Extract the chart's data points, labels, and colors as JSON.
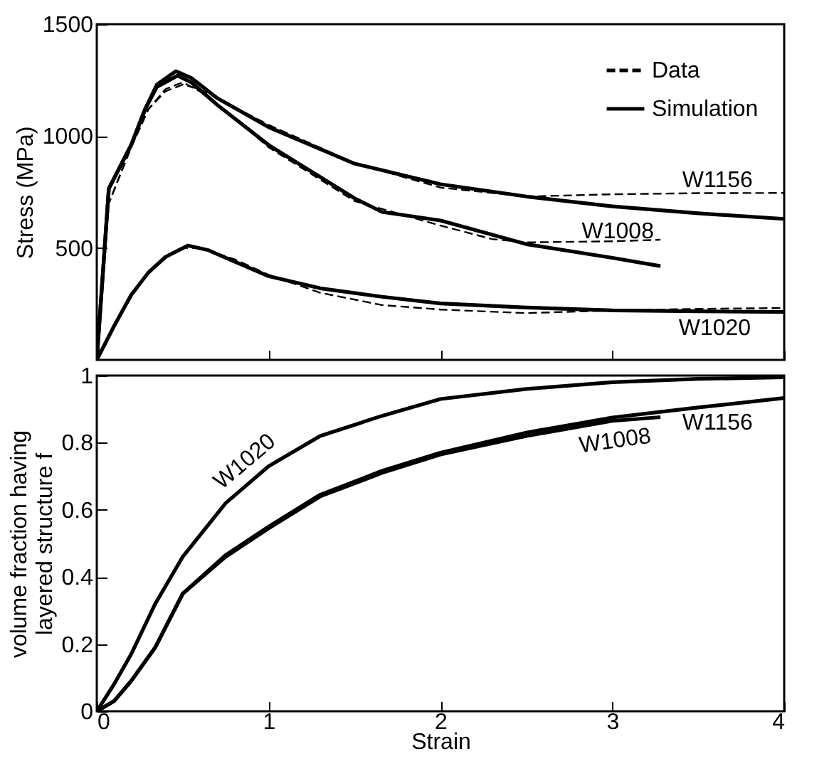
{
  "chart_data": [
    {
      "type": "line",
      "ylabel": "Stress (MPa)",
      "xlim": [
        0,
        4
      ],
      "xticks": [
        0,
        1,
        2,
        3,
        4
      ],
      "ylim": [
        0,
        1500
      ],
      "yticks": [
        500,
        1000,
        1500
      ],
      "tick_labels": "y",
      "legend": "top right",
      "grid": false,
      "series": [
        {
          "name": "Data",
          "color": "#000000",
          "line_style": "dashed",
          "x": [
            0,
            0.07,
            0.2,
            0.3,
            0.4,
            0.5,
            0.6,
            0.8,
            1,
            1.5,
            2,
            2.5,
            3,
            3.5,
            4
          ],
          "values": [
            0,
            700,
            950,
            1120,
            1200,
            1230,
            1210,
            1130,
            1050,
            880,
            770,
            730,
            740,
            745,
            746
          ]
        },
        {
          "color": "#000000",
          "line_style": "dashed",
          "x": [
            0,
            0.07,
            0.2,
            0.3,
            0.4,
            0.5,
            0.6,
            0.8,
            1,
            1.5,
            2,
            2.3,
            2.5,
            3,
            3.28
          ],
          "values": [
            0,
            700,
            950,
            1120,
            1210,
            1240,
            1200,
            1080,
            950,
            710,
            600,
            540,
            525,
            530,
            537
          ]
        },
        {
          "color": "#000000",
          "line_style": "dashed",
          "x": [
            0,
            0.1,
            0.2,
            0.3,
            0.4,
            0.5,
            0.6,
            0.8,
            1,
            1.3,
            1.66,
            2,
            2.5,
            3,
            3.5,
            4
          ],
          "values": [
            0,
            150,
            280,
            390,
            460,
            500,
            500,
            450,
            380,
            300,
            245,
            225,
            209,
            221,
            228,
            232
          ]
        },
        {
          "name": "Simulation",
          "color": "#000000",
          "line_style": "solid",
          "x": [
            0,
            0.07,
            0.2,
            0.28,
            0.35,
            0.46,
            0.55,
            0.7,
            1,
            1.5,
            2,
            2.5,
            3,
            3.5,
            4
          ],
          "values": [
            0,
            765,
            960,
            1118,
            1230,
            1290,
            1260,
            1170,
            1040,
            877,
            785,
            730,
            686,
            655,
            630
          ]
        },
        {
          "color": "#000000",
          "line_style": "solid",
          "x": [
            0,
            0.07,
            0.2,
            0.28,
            0.35,
            0.47,
            0.55,
            0.7,
            1,
            1.5,
            1.66,
            2,
            2.5,
            3,
            3.28
          ],
          "values": [
            0,
            765,
            960,
            1118,
            1220,
            1270,
            1240,
            1140,
            960,
            722,
            661,
            623,
            517,
            456,
            419
          ]
        },
        {
          "color": "#000000",
          "line_style": "solid",
          "x": [
            0,
            0.1,
            0.2,
            0.3,
            0.4,
            0.53,
            0.65,
            0.8,
            1,
            1.3,
            1.66,
            2,
            2.5,
            3,
            3.5,
            4
          ],
          "values": [
            0,
            150,
            290,
            390,
            460,
            511,
            490,
            440,
            374,
            320,
            282,
            252,
            234,
            221,
            217,
            214
          ]
        }
      ],
      "annotations": [
        "W1156",
        "W1008",
        "W1020"
      ]
    },
    {
      "type": "line",
      "xlabel": "Strain",
      "ylabel": "volume fraction having\nlayered structure f",
      "xlim": [
        0,
        4
      ],
      "xticks": [
        0,
        1,
        2,
        3,
        4
      ],
      "ylim": [
        0,
        1
      ],
      "yticks": [
        0,
        0.2,
        0.4,
        0.6,
        0.8,
        1
      ],
      "grid": false,
      "series": [
        {
          "color": "#000000",
          "line_style": "solid",
          "x": [
            0,
            0.1,
            0.2,
            0.34,
            0.5,
            0.75,
            1,
            1.3,
            1.66,
            2,
            2.5,
            3,
            3.5,
            4
          ],
          "values": [
            0,
            0.08,
            0.17,
            0.32,
            0.46,
            0.62,
            0.73,
            0.82,
            0.88,
            0.93,
            0.96,
            0.98,
            0.99,
            0.995
          ]
        },
        {
          "color": "#000000",
          "line_style": "solid",
          "x": [
            0,
            0.1,
            0.2,
            0.34,
            0.5,
            0.75,
            1,
            1.3,
            1.66,
            2,
            2.5,
            3,
            3.28
          ],
          "values": [
            0,
            0.03,
            0.09,
            0.19,
            0.35,
            0.46,
            0.545,
            0.64,
            0.71,
            0.765,
            0.82,
            0.865,
            0.876
          ]
        },
        {
          "color": "#000000",
          "line_style": "solid",
          "x": [
            0,
            0.1,
            0.2,
            0.34,
            0.5,
            0.75,
            1,
            1.3,
            1.66,
            2,
            2.5,
            3,
            3.5,
            4
          ],
          "values": [
            0,
            0.03,
            0.09,
            0.19,
            0.35,
            0.465,
            0.55,
            0.645,
            0.716,
            0.77,
            0.83,
            0.875,
            0.905,
            0.933
          ]
        }
      ],
      "annotations": [
        "W1020",
        "W1008",
        "W1156"
      ]
    }
  ]
}
